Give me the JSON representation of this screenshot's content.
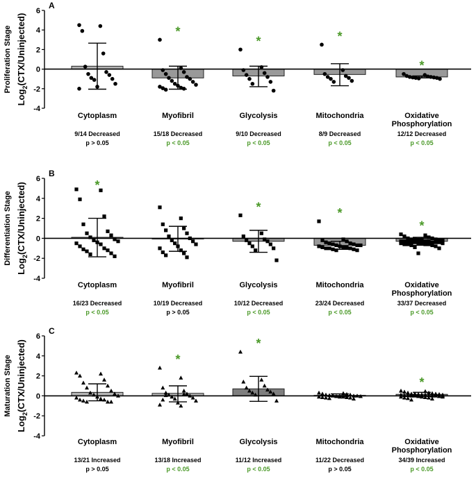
{
  "colors": {
    "bar_light": "#b3b3b3",
    "bar_mid": "#999999",
    "bar_dark": "#7f7f7f",
    "axis": "#000000",
    "significant": "#4c9a2a"
  },
  "chart_data": [
    {
      "type": "bar",
      "panel_letter": "A",
      "stage_label": "Proliferation Stage",
      "ylabel_main": "Log",
      "ylabel_sub": "2",
      "ylabel_rest": "(CTX/Uninjected)",
      "ylim": [
        -4,
        6
      ],
      "yticks": [
        "6",
        "4",
        "2",
        "0",
        "-2",
        "-4"
      ],
      "marker": "circle",
      "categories": [
        "Cytoplasm",
        "Myofibril",
        "Glycolysis",
        "Mitochondria",
        "Oxidative Phosphorylation"
      ],
      "category_lines": [
        [
          "Cytoplasm"
        ],
        [
          "Myofibril"
        ],
        [
          "Glycolysis"
        ],
        [
          "Mitochondria"
        ],
        [
          "Oxidative",
          "Phosphorylation"
        ]
      ],
      "bar_color": [
        "light",
        "mid",
        "mid",
        "mid",
        "mid"
      ],
      "values": [
        0.3,
        -0.9,
        -0.7,
        -0.55,
        -0.8
      ],
      "error_upper": [
        2.65,
        0.3,
        0.3,
        0.55,
        -0.7
      ],
      "error_lower": [
        -2.05,
        -2.05,
        -1.8,
        -1.7,
        -0.9
      ],
      "significant": [
        false,
        true,
        true,
        true,
        true
      ],
      "points": [
        [
          4.5,
          4.4,
          3.9,
          1.6,
          0.25,
          -0.3,
          -0.5,
          -0.6,
          -0.9,
          -1.0,
          -1.1,
          -1.5,
          -1.8,
          -2.0
        ],
        [
          3.0,
          0.1,
          -0.1,
          -0.3,
          -0.5,
          -0.8,
          -0.9,
          -1.0,
          -1.2,
          -1.3,
          -1.5,
          -1.6,
          -1.7,
          -1.8,
          -1.9,
          -1.95,
          -2.0,
          -2.1
        ],
        [
          2.0,
          0.2,
          -0.1,
          -0.4,
          -0.6,
          -0.8,
          -1.0,
          -1.3,
          -1.5,
          -2.2
        ],
        [
          2.5,
          -0.1,
          -0.5,
          -0.7,
          -0.8,
          -0.9,
          -1.0,
          -1.2,
          -1.3
        ],
        [
          -0.5,
          -0.6,
          -0.7,
          -0.75,
          -0.8,
          -0.8,
          -0.85,
          -0.85,
          -0.9,
          -0.9,
          -0.95,
          -1.0
        ]
      ],
      "stats": [
        {
          "result": "9/14  Decreased",
          "p": "p > 0.05",
          "significant": false
        },
        {
          "result": "15/18 Decreased",
          "p": "p < 0.05",
          "significant": true
        },
        {
          "result": "9/10 Decreased",
          "p": "p < 0.05",
          "significant": true
        },
        {
          "result": "8/9 Decreased",
          "p": "p < 0.05",
          "significant": true
        },
        {
          "result": "12/12 Decreased",
          "p": "p < 0.05",
          "significant": true
        }
      ]
    },
    {
      "type": "bar",
      "panel_letter": "B",
      "stage_label": "Differentiation Stage",
      "ylabel_main": "Log",
      "ylabel_sub": "2",
      "ylabel_rest": "(CTX/Uninjected)",
      "ylim": [
        -4,
        6
      ],
      "yticks": [
        "6",
        "4",
        "2",
        "0",
        "-2",
        "-4"
      ],
      "marker": "square",
      "categories": [
        "Cytoplasm",
        "Myofibril",
        "Glycolysis",
        "Mitochondria",
        "Oxidative Phosphorylation"
      ],
      "category_lines": [
        [
          "Cytoplasm"
        ],
        [
          "Myofibril"
        ],
        [
          "Glycolysis"
        ],
        [
          "Mitochondria"
        ],
        [
          "Oxidative",
          "Phosphorylation"
        ]
      ],
      "bar_color": [
        "light",
        "light",
        "mid",
        "mid",
        "mid"
      ],
      "values": [
        0.1,
        0.0,
        -0.3,
        -0.7,
        -0.3
      ],
      "error_upper": [
        2.0,
        1.2,
        0.8,
        -0.3,
        0.1
      ],
      "error_lower": [
        -1.85,
        -1.3,
        -1.4,
        -1.1,
        -0.7
      ],
      "significant": [
        true,
        false,
        true,
        true,
        true
      ],
      "points": [
        [
          4.9,
          4.8,
          3.9,
          2.2,
          1.4,
          0.7,
          0.5,
          0.3,
          0.1,
          -0.1,
          -0.2,
          -0.3,
          -0.4,
          -0.5,
          -0.6,
          -0.8,
          -1.0,
          -1.1,
          -1.2,
          -1.3,
          -1.5,
          -1.6,
          -1.8
        ],
        [
          3.1,
          2.0,
          1.4,
          1.0,
          0.8,
          0.5,
          0.2,
          0.0,
          -0.2,
          -0.3,
          -0.5,
          -0.6,
          -0.8,
          -1.0,
          -1.2,
          -1.4,
          -1.5,
          -1.7,
          -1.9
        ],
        [
          2.3,
          0.5,
          0.2,
          -0.1,
          -0.2,
          -0.3,
          -0.5,
          -0.6,
          -0.8,
          -1.0,
          -1.2,
          -2.2
        ],
        [
          1.7,
          -0.1,
          -0.2,
          -0.3,
          -0.4,
          -0.5,
          -0.5,
          -0.6,
          -0.6,
          -0.7,
          -0.7,
          -0.7,
          -0.8,
          -0.8,
          -0.9,
          -0.9,
          -0.9,
          -1.0,
          -1.0,
          -1.0,
          -1.1,
          -1.1,
          -1.2,
          -1.2
        ],
        [
          0.4,
          0.3,
          0.2,
          0.1,
          0.0,
          0.0,
          -0.1,
          -0.1,
          -0.1,
          -0.2,
          -0.2,
          -0.2,
          -0.2,
          -0.3,
          -0.3,
          -0.3,
          -0.3,
          -0.3,
          -0.4,
          -0.4,
          -0.4,
          -0.4,
          -0.4,
          -0.5,
          -0.5,
          -0.5,
          -0.5,
          -0.6,
          -0.6,
          -0.6,
          -0.6,
          -0.7,
          -0.7,
          -0.8,
          -0.9,
          -1.0,
          -1.5
        ]
      ],
      "stats": [
        {
          "result": "16/23  Decreased",
          "p": "p < 0.05",
          "significant": true
        },
        {
          "result": "10/19 Decreased",
          "p": "p > 0.05",
          "significant": false
        },
        {
          "result": "10/12 Decreased",
          "p": "p < 0.05",
          "significant": true
        },
        {
          "result": "23/24 Decreased",
          "p": "p < 0.05",
          "significant": true
        },
        {
          "result": "33/37 Decreased",
          "p": "p < 0.05",
          "significant": true
        }
      ]
    },
    {
      "type": "bar",
      "panel_letter": "C",
      "stage_label": "Maturation Stage",
      "ylabel_main": "Log",
      "ylabel_sub": "2",
      "ylabel_rest": "(CTX/Uninjected)",
      "ylim": [
        -4,
        6
      ],
      "yticks": [
        "6",
        "4",
        "2",
        "0",
        "-2",
        "-4"
      ],
      "marker": "triangle",
      "categories": [
        "Cytoplasm",
        "Myofibril",
        "Glycolysis",
        "Mitochondria",
        "Oxidative Phosphorylation"
      ],
      "category_lines": [
        [
          "Cytoplasm"
        ],
        [
          "Myofibril"
        ],
        [
          "Glycolysis"
        ],
        [
          "Mitochondria"
        ],
        [
          "Oxidative",
          "Phosphorylation"
        ]
      ],
      "bar_color": [
        "light",
        "light",
        "dark",
        "mid",
        "mid"
      ],
      "values": [
        0.35,
        0.25,
        0.7,
        0.05,
        0.15
      ],
      "error_upper": [
        1.2,
        1.0,
        1.95,
        0.2,
        0.35
      ],
      "error_lower": [
        -0.5,
        -0.6,
        -0.55,
        -0.1,
        -0.05
      ],
      "significant": [
        false,
        true,
        true,
        false,
        true
      ],
      "points": [
        [
          2.3,
          2.2,
          2.0,
          1.6,
          1.3,
          1.0,
          0.8,
          0.5,
          0.3,
          0.2,
          0.1,
          0.0,
          -0.1,
          -0.2,
          -0.3,
          -0.4,
          -0.4,
          -0.5,
          -0.6,
          -0.6,
          -0.6
        ],
        [
          2.8,
          1.8,
          0.8,
          0.5,
          0.3,
          0.2,
          0.1,
          0.0,
          -0.1,
          -0.2,
          -0.3,
          -0.5,
          -0.7,
          -0.9,
          -1.0,
          -0.4,
          0.15,
          0.05
        ],
        [
          4.4,
          1.6,
          1.4,
          1.0,
          0.8,
          0.6,
          0.5,
          0.4,
          0.3,
          0.2,
          0.1,
          -0.5
        ],
        [
          0.3,
          0.25,
          0.2,
          0.15,
          0.1,
          0.1,
          0.05,
          0.0,
          0.0,
          0.0,
          -0.05,
          -0.05,
          -0.1,
          -0.1,
          -0.1,
          -0.15,
          -0.15,
          -0.2,
          -0.2,
          -0.25,
          -0.3,
          0.05
        ],
        [
          0.5,
          0.45,
          0.4,
          0.3,
          0.3,
          0.25,
          0.2,
          0.2,
          0.2,
          0.15,
          0.15,
          0.1,
          0.1,
          0.1,
          0.1,
          0.05,
          0.05,
          0.05,
          0.0,
          0.0,
          0.0,
          0.0,
          -0.05,
          -0.05,
          -0.1,
          -0.1,
          -0.1,
          -0.15,
          -0.2,
          -0.2,
          -0.25,
          -0.3,
          -0.4,
          0.15,
          0.2,
          0.1,
          0.05,
          0.0,
          -0.05
        ]
      ],
      "stats": [
        {
          "result": "13/21  Increased",
          "p": "p > 0.05",
          "significant": false
        },
        {
          "result": "13/18 Increased",
          "p": "p < 0.05",
          "significant": true
        },
        {
          "result": "11/12  Increased",
          "p": "p < 0.05",
          "significant": true
        },
        {
          "result": "11/22 Decreased",
          "p": "p > 0.05",
          "significant": false
        },
        {
          "result": "34/39 Increased",
          "p": "p < 0.05",
          "significant": true
        }
      ]
    }
  ]
}
